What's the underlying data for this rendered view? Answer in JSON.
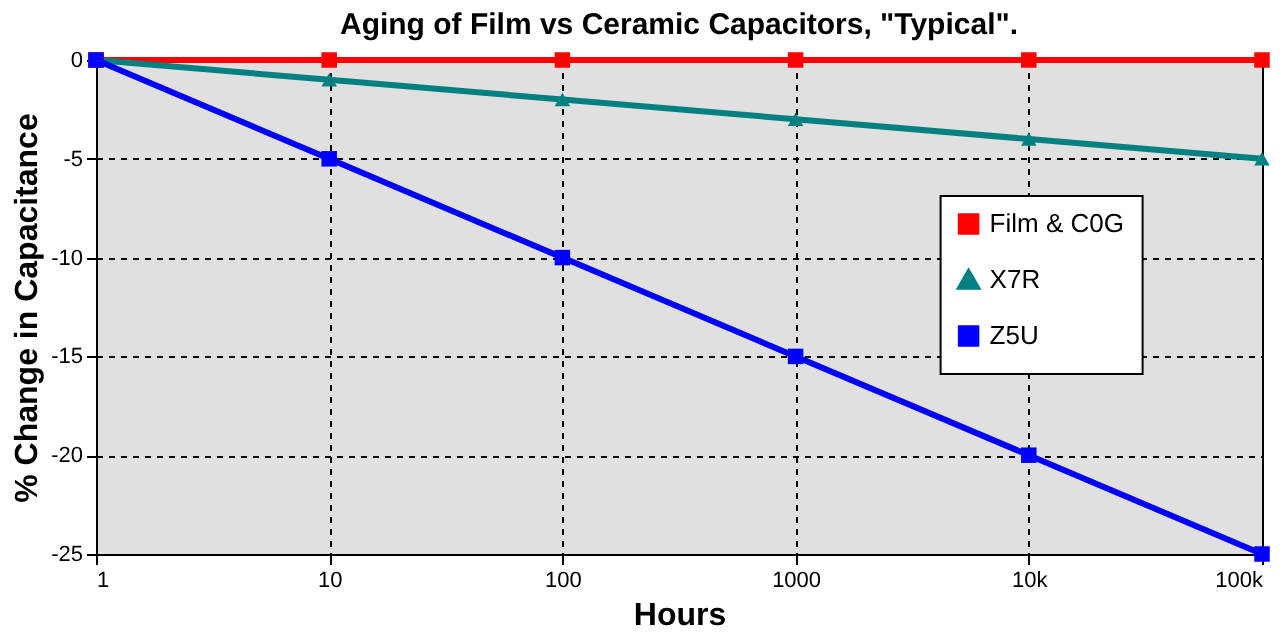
{
  "chart_data": {
    "type": "line",
    "title": "Aging of Film vs Ceramic Capacitors, \"Typical\".",
    "xlabel": "Hours",
    "ylabel": "% Change in Capacitance",
    "x": [
      1,
      10,
      100,
      1000,
      10000,
      100000
    ],
    "series": [
      {
        "name": "Film & C0G",
        "color": "#ff0000",
        "marker": "square",
        "values": [
          0,
          0,
          0,
          0,
          0,
          0
        ]
      },
      {
        "name": "X7R",
        "color": "#008080",
        "marker": "triangle",
        "values": [
          0,
          -1,
          -2,
          -3,
          -4,
          -5
        ]
      },
      {
        "name": "Z5U",
        "color": "#0000ff",
        "marker": "square",
        "values": [
          0,
          -5,
          -10,
          -15,
          -20,
          -25
        ]
      }
    ],
    "log": "x",
    "xlim": [
      1,
      100000
    ],
    "xticks": [
      1,
      10,
      100,
      1000,
      {
        "value": 10000,
        "label": "10k"
      },
      {
        "value": 100000,
        "label": "100k"
      }
    ],
    "ylim": [
      -25,
      0
    ],
    "yticks": [
      -25,
      -20,
      -15,
      -10,
      -5,
      0
    ],
    "grid": true,
    "legend": "right",
    "line_style": "solid"
  }
}
